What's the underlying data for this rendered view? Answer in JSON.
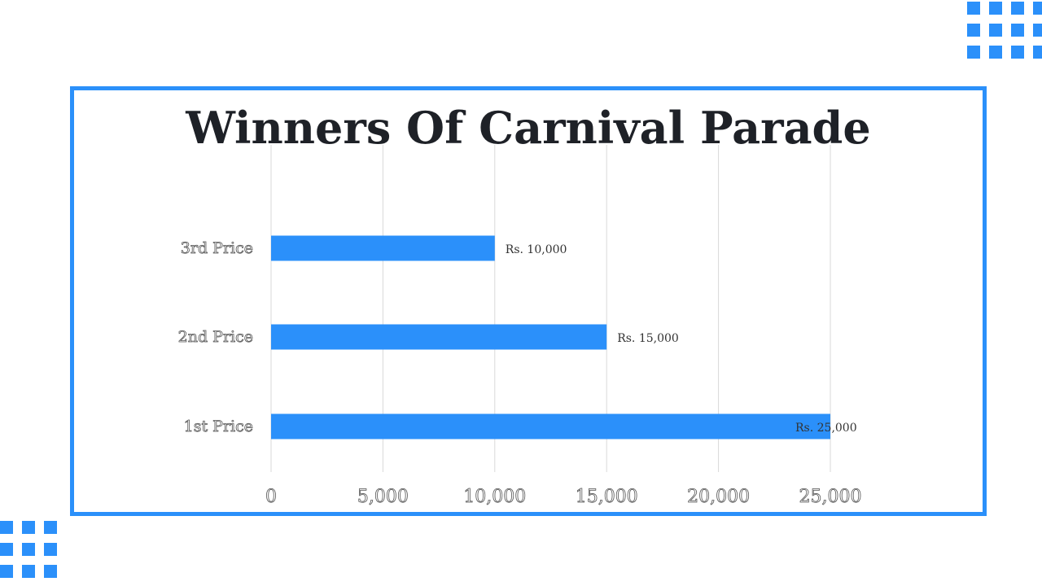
{
  "accent_color": "#2b90fa",
  "title": "Winners Of Carnival Parade",
  "chart_data": {
    "type": "bar",
    "orientation": "horizontal",
    "title": "Winners Of Carnival Parade",
    "categories": [
      "3rd Price",
      "2nd Price",
      "1st Price"
    ],
    "values": [
      10000,
      15000,
      25000
    ],
    "data_labels": [
      "Rs. 10,000",
      "Rs. 15,000",
      "Rs. 25,000"
    ],
    "xlim": [
      0,
      25000
    ],
    "x_ticks": [
      0,
      5000,
      10000,
      15000,
      20000,
      25000
    ],
    "x_tick_labels": [
      "0",
      "5,000",
      "10,000",
      "15,000",
      "20,000",
      "25,000"
    ],
    "grid": true,
    "bar_color": "#2b90fa",
    "xlabel": "",
    "ylabel": ""
  }
}
